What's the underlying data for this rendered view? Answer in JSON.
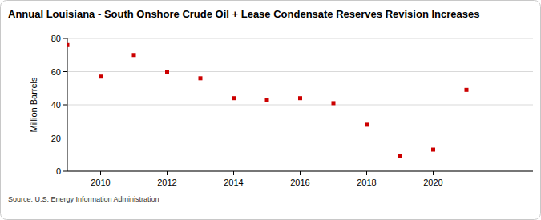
{
  "chart_data": {
    "type": "scatter",
    "title": "Annual Louisiana - South Onshore Crude Oil + Lease Condensate Reserves Revision Increases",
    "y_label": "Million Barrels",
    "source": "Source: U.S. Energy Information Administration",
    "x": [
      2009,
      2010,
      2011,
      2012,
      2013,
      2014,
      2015,
      2016,
      2017,
      2018,
      2019,
      2020,
      2021
    ],
    "values": [
      76,
      57,
      70,
      60,
      56,
      44,
      43,
      44,
      41,
      28,
      9,
      13,
      49
    ],
    "color": "#cc0000",
    "marker": "square",
    "xlim": [
      2009,
      2023
    ],
    "xticks": [
      2010,
      2012,
      2014,
      2016,
      2018,
      2020
    ],
    "ylim": [
      0,
      80
    ],
    "yticks": [
      0,
      20,
      40,
      60,
      80
    ],
    "grid": true
  }
}
